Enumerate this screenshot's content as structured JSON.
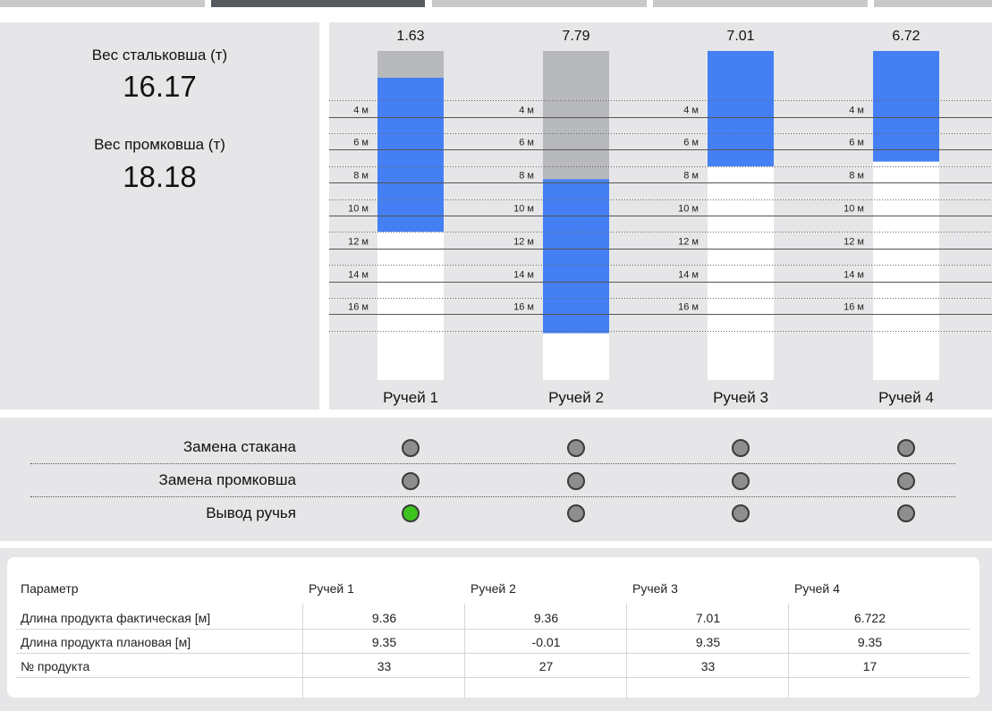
{
  "tabs": [
    {
      "label": "",
      "active": false
    },
    {
      "label": "",
      "active": true
    },
    {
      "label": "",
      "active": false
    },
    {
      "label": "",
      "active": false
    },
    {
      "label": "",
      "active": false
    }
  ],
  "info": {
    "steel_ladle_label": "Вес стальковша (т)",
    "steel_ladle_value": "16.17",
    "tundish_label": "Вес промковша (т)",
    "tundish_value": "18.18"
  },
  "chart_data": {
    "type": "bar",
    "title": "",
    "categories": [
      "Ручей 1",
      "Ручей 2",
      "Ручей 3",
      "Ручей 4"
    ],
    "top_labels": [
      "1.63",
      "7.79",
      "7.01",
      "6.72"
    ],
    "axis_unit": "м",
    "ylim": [
      0,
      20
    ],
    "levels": [
      4,
      6,
      8,
      10,
      12,
      14,
      16
    ],
    "level_labels": [
      "4 м",
      "6 м",
      "8 м",
      "10 м",
      "12 м",
      "14 м",
      "16 м"
    ],
    "series": [
      {
        "values": [
          1.63,
          7.79,
          0,
          0
        ],
        "color": "#b8b9bc"
      },
      {
        "values": [
          9.36,
          9.36,
          7.01,
          6.722
        ],
        "color": "#4480f4"
      }
    ],
    "empty_color": "#ffffff"
  },
  "indicators": {
    "rows": [
      {
        "label": "Замена стакана",
        "states": [
          "off",
          "off",
          "off",
          "off"
        ]
      },
      {
        "label": "Замена промковша",
        "states": [
          "off",
          "off",
          "off",
          "off"
        ]
      },
      {
        "label": "Вывод ручья",
        "states": [
          "on",
          "off",
          "off",
          "off"
        ]
      }
    ],
    "colors": {
      "off": "#8e8e8e",
      "on": "#3ec41e"
    }
  },
  "table": {
    "headers": [
      "Параметр",
      "Ручей 1",
      "Ручей 2",
      "Ручей 3",
      "Ручей 4"
    ],
    "rows": [
      {
        "param": "Длина продукта фактическая [м]",
        "values": [
          "9.36",
          "9.36",
          "7.01",
          "6.722"
        ]
      },
      {
        "param": "Длина продукта плановая [м]",
        "values": [
          "9.35",
          "-0.01",
          "9.35",
          "9.35"
        ]
      },
      {
        "param": "№ продукта",
        "values": [
          "33",
          "27",
          "33",
          "17"
        ]
      }
    ]
  }
}
